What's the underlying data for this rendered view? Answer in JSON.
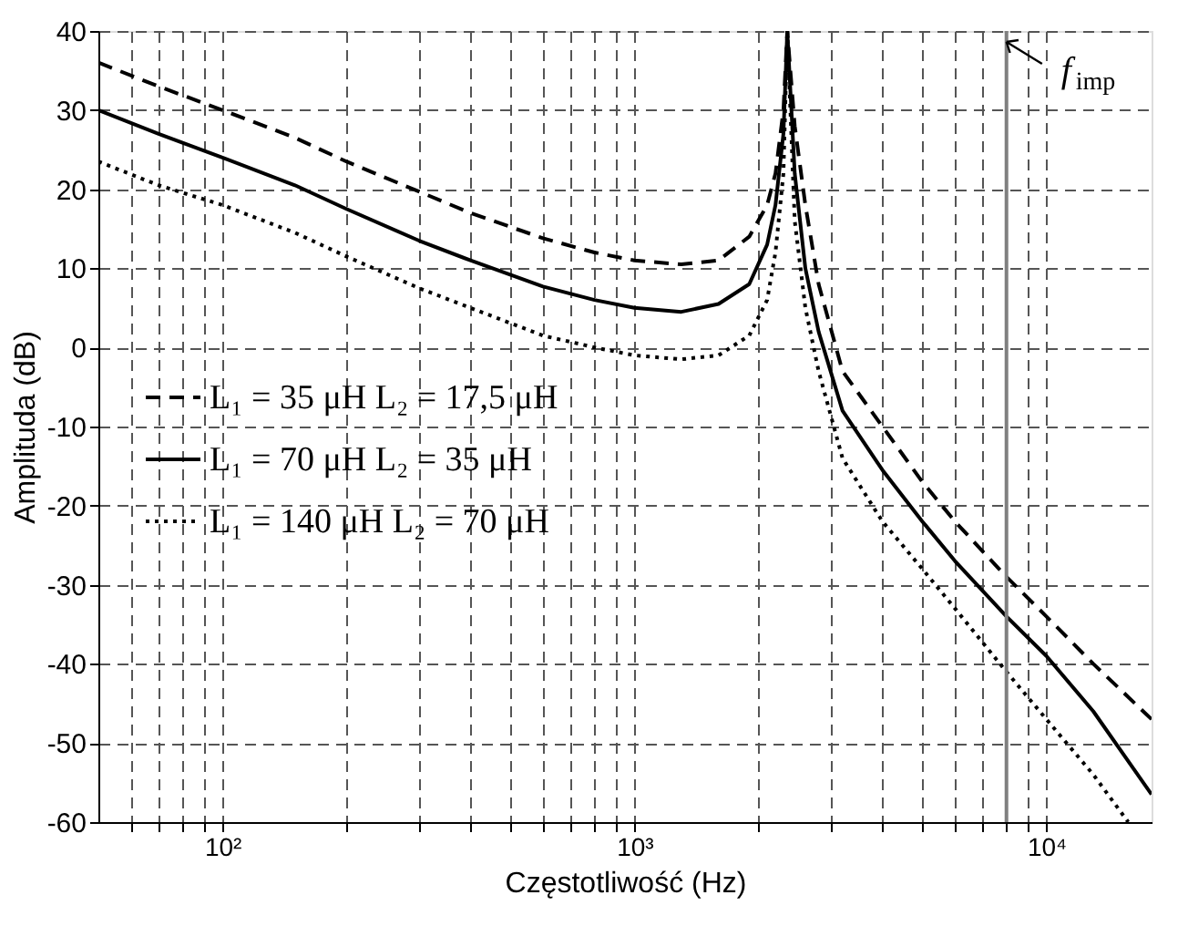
{
  "chart_data": {
    "type": "line",
    "xlabel": "Częstotliwość  (Hz)",
    "ylabel": "Amplituda (dB)",
    "log": "x",
    "grid": true,
    "legend": "left",
    "xlim": [
      50,
      18000
    ],
    "xticks": [
      {
        "value": 60,
        "label": null
      },
      {
        "value": 70,
        "label": null
      },
      {
        "value": 80,
        "label": null
      },
      {
        "value": 90,
        "label": null
      },
      {
        "value": 100,
        "label": "10²"
      },
      {
        "value": 200,
        "label": null
      },
      {
        "value": 300,
        "label": null
      },
      {
        "value": 400,
        "label": null
      },
      {
        "value": 500,
        "label": null
      },
      {
        "value": 600,
        "label": null
      },
      {
        "value": 700,
        "label": null
      },
      {
        "value": 800,
        "label": null
      },
      {
        "value": 900,
        "label": null
      },
      {
        "value": 1000,
        "label": "10³"
      },
      {
        "value": 2000,
        "label": null
      },
      {
        "value": 3000,
        "label": null
      },
      {
        "value": 4000,
        "label": null
      },
      {
        "value": 5000,
        "label": null
      },
      {
        "value": 6000,
        "label": null
      },
      {
        "value": 7000,
        "label": null
      },
      {
        "value": 8000,
        "label": null
      },
      {
        "value": 9000,
        "label": null
      },
      {
        "value": 10000,
        "label": "10⁴"
      }
    ],
    "ylim": [
      -60,
      40
    ],
    "yticks": [
      -60,
      -50,
      -40,
      -30,
      -20,
      -10,
      0,
      10,
      20,
      30,
      40
    ],
    "x": [
      50,
      70,
      100,
      150,
      200,
      300,
      400,
      600,
      800,
      1000,
      1300,
      1600,
      1900,
      2100,
      2200,
      2300,
      2350,
      2450,
      2600,
      2800,
      3200,
      4000,
      5000,
      6000,
      8000,
      10000,
      13000,
      18000
    ],
    "series": [
      {
        "name": "L₁ = 35 μH L₂ = 17,5 μH",
        "color": "#000000",
        "line_style": "dashed",
        "values": [
          36,
          33,
          30,
          26.5,
          23.5,
          19.7,
          17,
          13.8,
          12,
          11,
          10.5,
          11,
          14,
          18,
          22,
          30,
          40,
          28,
          18,
          8,
          -3,
          -10,
          -17,
          -22,
          -29,
          -34,
          -40,
          -47
        ]
      },
      {
        "name": "L₁ = 70 μH L₂ = 35 μH",
        "color": "#000000",
        "line_style": "solid",
        "values": [
          30,
          27,
          24,
          20.5,
          17.5,
          13.5,
          11,
          7.7,
          6,
          5,
          4.5,
          5.5,
          8,
          13,
          18,
          27,
          40,
          22,
          10,
          2,
          -8,
          -15.5,
          -22,
          -27,
          -34,
          -39,
          -46,
          -56.5
        ]
      },
      {
        "name": "L₁ = 140 μH L₂ = 70 μH",
        "color": "#000000",
        "line_style": "dotted",
        "x": [
          50,
          70,
          100,
          150,
          200,
          300,
          400,
          600,
          800,
          1000,
          1300,
          1600,
          1900,
          2100,
          2200,
          2300,
          2350,
          2450,
          2600,
          2800,
          3200,
          4000,
          5000,
          6000,
          8000,
          10000,
          13000,
          15800
        ],
        "values": [
          23.5,
          20.5,
          18,
          14.5,
          11.5,
          7.5,
          5,
          1.5,
          0,
          -1,
          -1.5,
          -1,
          1.5,
          6,
          12,
          22,
          40,
          16,
          5,
          -3,
          -14,
          -22,
          -28,
          -33,
          -41,
          -47,
          -54,
          -60
        ]
      }
    ],
    "ref_lines": [
      {
        "axis": "x",
        "value": 8000,
        "label": "f$_{imp}$",
        "color": "#808080"
      }
    ]
  }
}
